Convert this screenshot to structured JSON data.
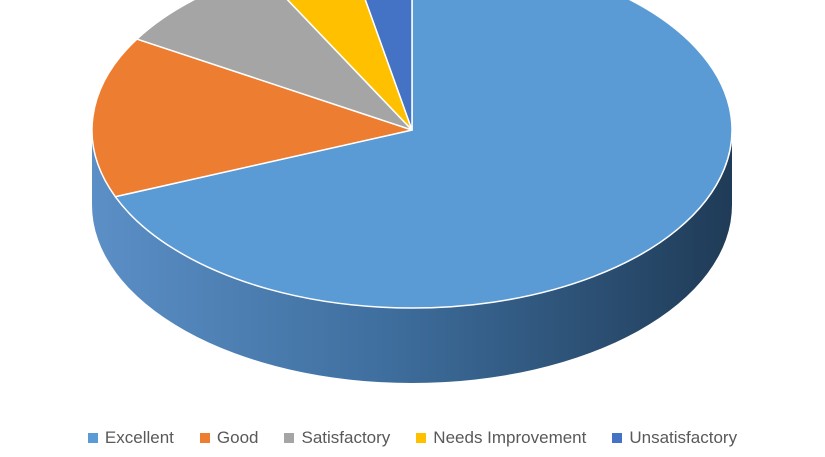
{
  "chart_data": {
    "type": "pie",
    "style": "3d",
    "title": "",
    "legend_position": "bottom",
    "categories": [
      "Excellent",
      "Good",
      "Satisfactory",
      "Needs Improvement",
      "Unsatisfactory"
    ],
    "values": [
      68.2,
      14.5,
      8.6,
      4.6,
      3.1
    ],
    "colors": [
      "#5b9bd5",
      "#ed7d31",
      "#a5a5a5",
      "#ffc000",
      "#4472c4"
    ]
  }
}
